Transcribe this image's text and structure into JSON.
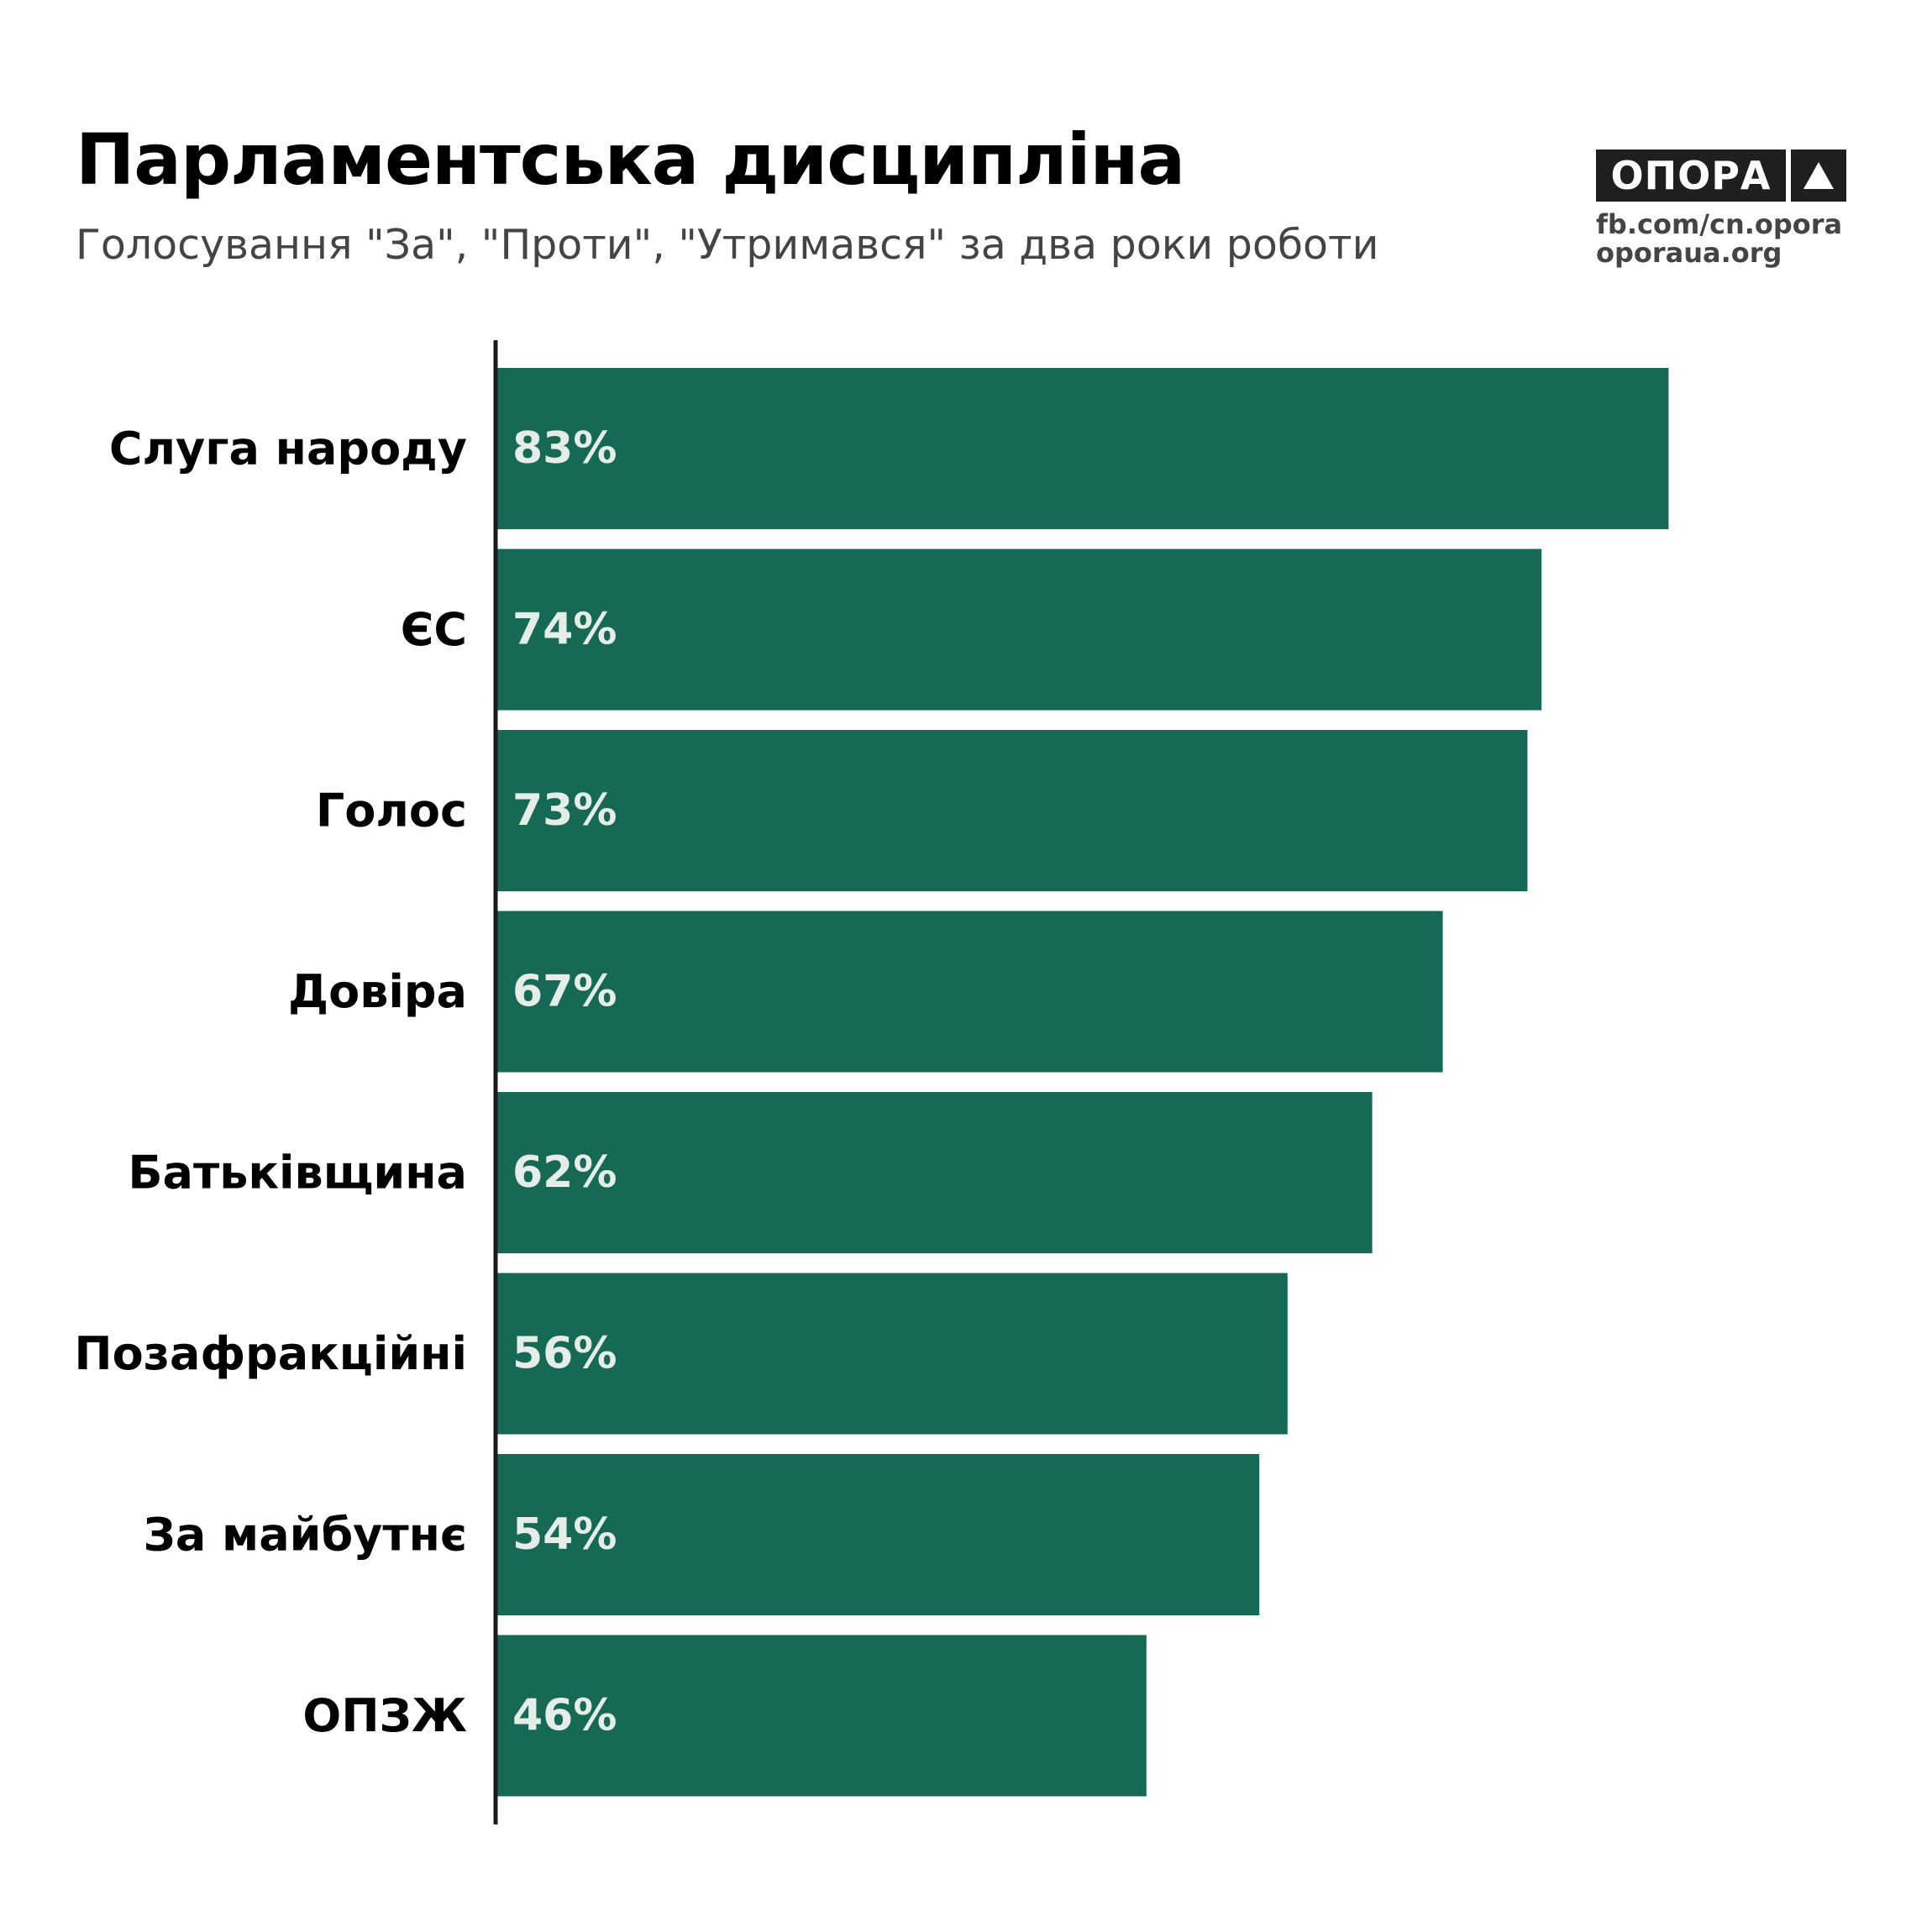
{
  "header": {
    "title": "Парламентська дисципліна",
    "subtitle": "Голосування \"За\", \"Проти\", \"Утримався\" за два роки роботи"
  },
  "logo": {
    "name": "ОПОРА",
    "icon": "triangle-icon",
    "link1": "fb.com/cn.opora",
    "link2": "oporaua.org"
  },
  "colors": {
    "bar": "#166a55",
    "axis": "#1a1a1a",
    "value_text": "#e4ede8"
  },
  "chart_data": {
    "type": "bar",
    "orientation": "horizontal",
    "categories": [
      "Слуга народу",
      "ЄС",
      "Голос",
      "Довіра",
      "Батьківщина",
      "Позафракційні",
      "За майбутнє",
      "ОПЗЖ"
    ],
    "values": [
      83,
      74,
      73,
      67,
      62,
      56,
      54,
      46
    ],
    "value_labels": [
      "83%",
      "74%",
      "73%",
      "67%",
      "62%",
      "56%",
      "54%",
      "46%"
    ],
    "title": "Парламентська дисципліна",
    "subtitle": "Голосування \"За\", \"Проти\", \"Утримався\" за два роки роботи",
    "xlim": [
      0,
      100
    ],
    "grid": false,
    "legend": "none"
  }
}
